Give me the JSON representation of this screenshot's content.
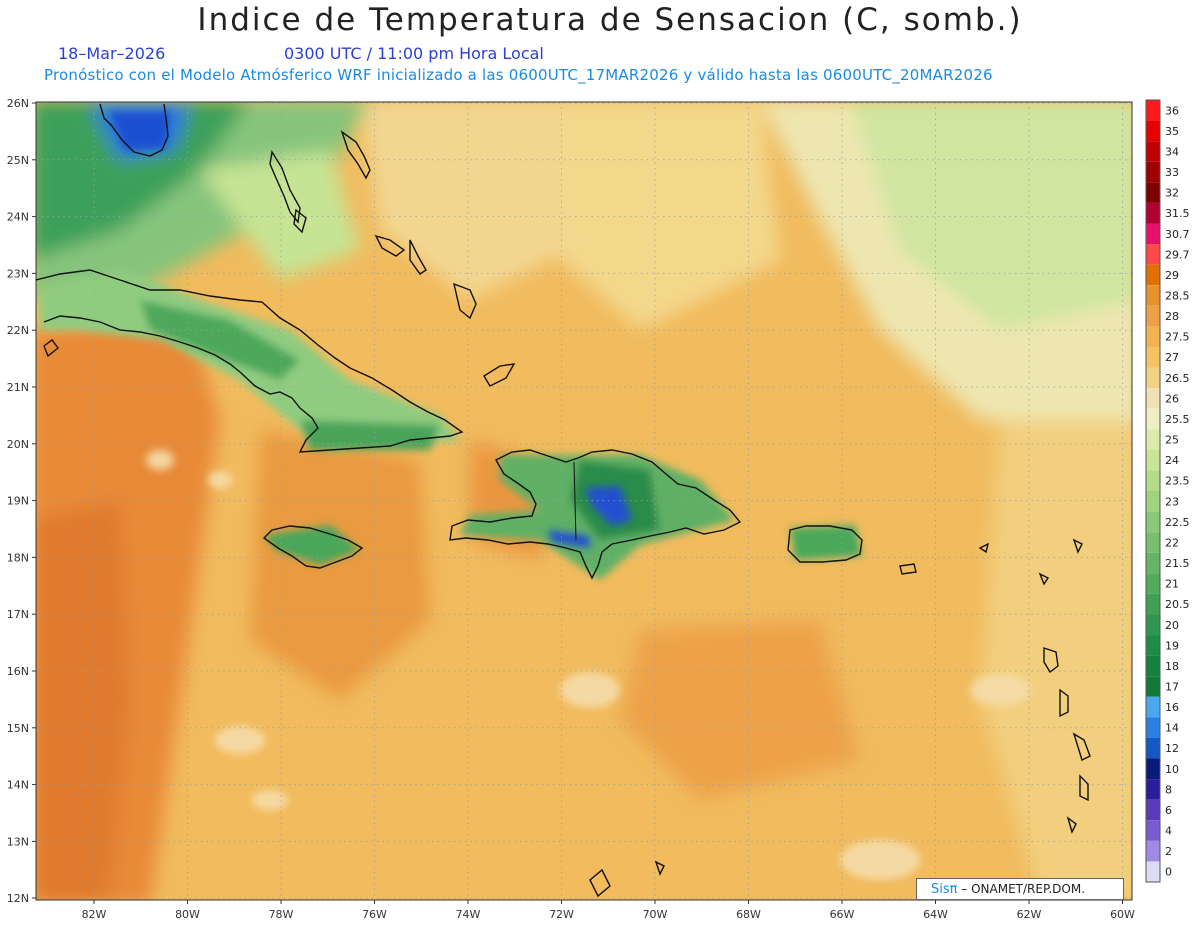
{
  "title": "Indice de Temperatura de Sensacion (C, somb.)",
  "date": "18–Mar–2026",
  "time": "0300 UTC / 11:00 pm Hora Local",
  "model_line": "Pronóstico con el Modelo Atmósferico WRF inicializado a las 0600UTC_17MAR2026 y válido hasta las  0600UTC_20MAR2026",
  "credit": {
    "logo": "Sisπ",
    "text": "– ONAMET/REP.DOM."
  },
  "lat_labels": [
    "26N",
    "25N",
    "24N",
    "23N",
    "22N",
    "21N",
    "20N",
    "19N",
    "18N",
    "17N",
    "16N",
    "15N",
    "14N",
    "13N",
    "12N"
  ],
  "lon_labels": [
    "82W",
    "80W",
    "78W",
    "76W",
    "74W",
    "72W",
    "70W",
    "68W",
    "66W",
    "64W",
    "62W",
    "60W"
  ],
  "colorbar": {
    "labels": [
      "36",
      "35",
      "34",
      "33",
      "32",
      "31.5",
      "30.7",
      "29.7",
      "29",
      "28.5",
      "28",
      "27.5",
      "27",
      "26.5",
      "26",
      "25.5",
      "25",
      "24",
      "23.5",
      "23",
      "22.5",
      "22",
      "21.5",
      "21",
      "20.5",
      "20",
      "19",
      "18",
      "17",
      "16",
      "14",
      "12",
      "10",
      "8",
      "6",
      "4",
      "2",
      "0"
    ],
    "colors": [
      "#ff1a1a",
      "#e60000",
      "#c00000",
      "#a00000",
      "#800000",
      "#b00030",
      "#e8106a",
      "#ff4a4a",
      "#e07000",
      "#e8922a",
      "#eea046",
      "#f2b252",
      "#f5c460",
      "#f2d386",
      "#f0e2b4",
      "#eef0c4",
      "#dcebaa",
      "#c8e596",
      "#b4dc88",
      "#a0d37e",
      "#8cc878",
      "#7abe70",
      "#66b466",
      "#52aa5e",
      "#40a056",
      "#2e964e",
      "#1f8c46",
      "#14823e",
      "#127a38",
      "#4aa8f0",
      "#2a80e0",
      "#1458c8",
      "#0a1a7a",
      "#2a1c9a",
      "#5a3ab8",
      "#7a5ad0",
      "#a08ae6",
      "#dcdcf4"
    ]
  }
}
